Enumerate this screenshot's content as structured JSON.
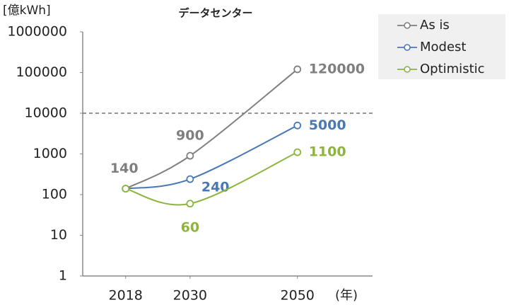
{
  "chart_data": {
    "type": "line",
    "title": "データセンター",
    "y_label": "[億kWh]",
    "x_label": "(年)",
    "x": [
      2018,
      2030,
      2050
    ],
    "series": [
      {
        "name": "As is",
        "color": "#7f7f7f",
        "values": [
          140,
          900,
          120000
        ],
        "value_labels": [
          "140",
          "900",
          "120000"
        ]
      },
      {
        "name": "Modest",
        "color": "#4a78b5",
        "values": [
          140,
          240,
          5000
        ],
        "value_labels": [
          null,
          "240",
          "5000"
        ]
      },
      {
        "name": "Optimistic",
        "color": "#8cb43f",
        "values": [
          140,
          60,
          1100
        ],
        "value_labels": [
          null,
          "60",
          "1100"
        ]
      }
    ],
    "xlim": [
      2010,
      2064
    ],
    "xticks": [
      2018,
      2030,
      2050
    ],
    "ylim": [
      1,
      1000000
    ],
    "yticks": [
      1,
      10,
      100,
      1000,
      10000,
      100000,
      1000000
    ],
    "log_y": true,
    "reference_line": 10000,
    "legend": "upper right",
    "smooth": true
  }
}
